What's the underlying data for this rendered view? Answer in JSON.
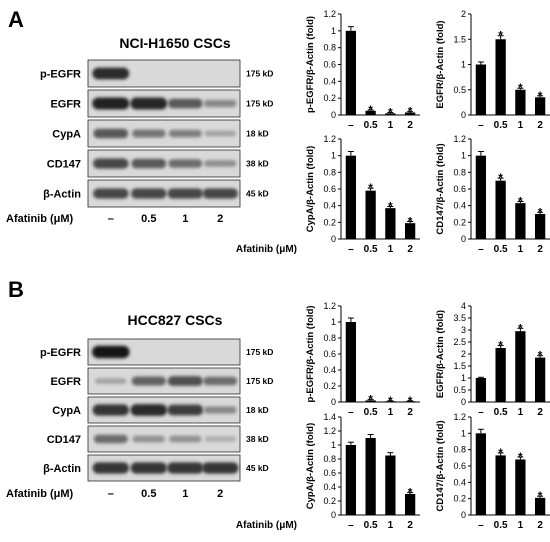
{
  "panels": [
    {
      "letter": "A",
      "title": "NCI-H1650 CSCs",
      "treatment_label": "Afatinib (μM)",
      "doses": [
        "–",
        "0.5",
        "1",
        "2"
      ],
      "blots": [
        {
          "name": "p-EGFR",
          "size": "175 kD",
          "intensity": [
            0.85,
            0.0,
            0.0,
            0.0
          ]
        },
        {
          "name": "EGFR",
          "size": "175 kD",
          "intensity": [
            0.9,
            0.88,
            0.6,
            0.35
          ]
        },
        {
          "name": "CypA",
          "size": "18 kD",
          "intensity": [
            0.6,
            0.45,
            0.4,
            0.2
          ]
        },
        {
          "name": "CD147",
          "size": "38 kD",
          "intensity": [
            0.7,
            0.6,
            0.5,
            0.3
          ]
        },
        {
          "name": "β-Actin",
          "size": "45 kD",
          "intensity": [
            0.7,
            0.7,
            0.7,
            0.7
          ]
        }
      ]
    },
    {
      "letter": "B",
      "title": "HCC827 CSCs",
      "treatment_label": "Afatinib (μM)",
      "doses": [
        "–",
        "0.5",
        "1",
        "2"
      ],
      "blots": [
        {
          "name": "p-EGFR",
          "size": "175 kD",
          "intensity": [
            0.95,
            0.0,
            0.0,
            0.0
          ]
        },
        {
          "name": "EGFR",
          "size": "175 kD",
          "intensity": [
            0.2,
            0.55,
            0.65,
            0.5
          ]
        },
        {
          "name": "CypA",
          "size": "18 kD",
          "intensity": [
            0.8,
            0.85,
            0.75,
            0.35
          ]
        },
        {
          "name": "CD147",
          "size": "38 kD",
          "intensity": [
            0.5,
            0.3,
            0.3,
            0.15
          ]
        },
        {
          "name": "β-Actin",
          "size": "45 kD",
          "intensity": [
            0.8,
            0.8,
            0.8,
            0.8
          ]
        }
      ]
    }
  ],
  "chart_data": [
    {
      "type": "bar",
      "panel": "A",
      "ylabel": "p-EGFR/β-Actin (fold)",
      "ylim": [
        0,
        1.2
      ],
      "yticks": [
        "0",
        "0.2",
        "0.4",
        "0.6",
        "0.8",
        "1",
        "1.2"
      ],
      "categories": [
        "–",
        "0.5",
        "1",
        "2"
      ],
      "values": [
        1.0,
        0.05,
        0.02,
        0.03
      ],
      "errors": [
        0.05,
        0.01,
        0.01,
        0.01
      ],
      "significant": [
        false,
        true,
        true,
        true
      ],
      "xlabel": ""
    },
    {
      "type": "bar",
      "panel": "A",
      "ylabel": "EGFR/β-Actin (fold)",
      "ylim": [
        0,
        2
      ],
      "yticks": [
        "0",
        "0.5",
        "1",
        "1.5",
        "2"
      ],
      "categories": [
        "–",
        "0.5",
        "1",
        "2"
      ],
      "values": [
        1.0,
        1.5,
        0.5,
        0.35
      ],
      "errors": [
        0.05,
        0.07,
        0.03,
        0.03
      ],
      "significant": [
        false,
        true,
        true,
        true
      ],
      "xlabel": ""
    },
    {
      "type": "bar",
      "panel": "A",
      "ylabel": "CypA/β-Actin (fold)",
      "ylim": [
        0,
        1.2
      ],
      "yticks": [
        "0",
        "0.2",
        "0.4",
        "0.6",
        "0.8",
        "1",
        "1.2"
      ],
      "categories": [
        "–",
        "0.5",
        "1",
        "2"
      ],
      "values": [
        1.0,
        0.58,
        0.37,
        0.19
      ],
      "errors": [
        0.05,
        0.03,
        0.02,
        0.02
      ],
      "significant": [
        false,
        true,
        true,
        true
      ],
      "xlabel": "Afatinib (μM)"
    },
    {
      "type": "bar",
      "panel": "A",
      "ylabel": "CD147/β-Actin (fold)",
      "ylim": [
        0,
        1.2
      ],
      "yticks": [
        "0",
        "0.2",
        "0.4",
        "0.6",
        "0.8",
        "1",
        "1.2"
      ],
      "categories": [
        "–",
        "0.5",
        "1",
        "2"
      ],
      "values": [
        1.0,
        0.7,
        0.43,
        0.3
      ],
      "errors": [
        0.05,
        0.03,
        0.02,
        0.02
      ],
      "significant": [
        false,
        true,
        true,
        true
      ],
      "xlabel": ""
    },
    {
      "type": "bar",
      "panel": "B",
      "ylabel": "p-EGFR/β-Actin (fold)",
      "ylim": [
        0,
        1.2
      ],
      "yticks": [
        "0",
        "0.2",
        "0.4",
        "0.6",
        "0.8",
        "1",
        "1.2"
      ],
      "categories": [
        "–",
        "0.5",
        "1",
        "2"
      ],
      "values": [
        1.0,
        0.02,
        0.01,
        0.01
      ],
      "errors": [
        0.05,
        0.01,
        0.005,
        0.005
      ],
      "significant": [
        false,
        true,
        true,
        true
      ],
      "xlabel": ""
    },
    {
      "type": "bar",
      "panel": "B",
      "ylabel": "EGFR/β-Actin (fold)",
      "ylim": [
        0,
        4
      ],
      "yticks": [
        "0",
        "0.5",
        "1",
        "1.5",
        "2",
        "2.5",
        "3",
        "3.5",
        "4"
      ],
      "categories": [
        "–",
        "0.5",
        "1",
        "2"
      ],
      "values": [
        1.0,
        2.25,
        2.95,
        1.85
      ],
      "errors": [
        0.03,
        0.1,
        0.12,
        0.08
      ],
      "significant": [
        false,
        true,
        true,
        true
      ],
      "xlabel": ""
    },
    {
      "type": "bar",
      "panel": "B",
      "ylabel": "CypA/β-Actin (fold)",
      "ylim": [
        0,
        1.4
      ],
      "yticks": [
        "0",
        "0.2",
        "0.4",
        "0.6",
        "0.8",
        "1",
        "1.2",
        "1.4"
      ],
      "categories": [
        "–",
        "0.5",
        "1",
        "2"
      ],
      "values": [
        1.0,
        1.1,
        0.85,
        0.3
      ],
      "errors": [
        0.04,
        0.05,
        0.04,
        0.02
      ],
      "significant": [
        false,
        false,
        false,
        true
      ],
      "xlabel": "Afatinib (μM)"
    },
    {
      "type": "bar",
      "panel": "B",
      "ylabel": "CD147/β-Actin (fold)",
      "ylim": [
        0,
        1.2
      ],
      "yticks": [
        "0",
        "0.2",
        "0.4",
        "0.6",
        "0.8",
        "1",
        "1.2"
      ],
      "categories": [
        "–",
        "0.5",
        "1",
        "2"
      ],
      "values": [
        1.0,
        0.73,
        0.68,
        0.21
      ],
      "errors": [
        0.05,
        0.03,
        0.03,
        0.02
      ],
      "significant": [
        false,
        true,
        true,
        true
      ],
      "xlabel": ""
    }
  ]
}
